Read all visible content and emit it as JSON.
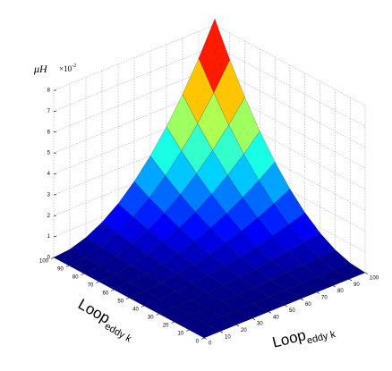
{
  "chart_data": {
    "type": "surface",
    "colormap": "jet",
    "grid": true,
    "zlabel": "μH",
    "z_multiplier_base": "×10",
    "z_multiplier_exponent": "-2",
    "xlabel": {
      "main": "Loop",
      "sub": "eddy k"
    },
    "ylabel": {
      "main": "Loop",
      "sub": "eddy k"
    },
    "xlim": [
      0,
      100
    ],
    "ylim": [
      0,
      100
    ],
    "zlim": [
      0,
      8
    ],
    "xticks": [
      0,
      10,
      20,
      30,
      40,
      50,
      60,
      70,
      80,
      90,
      100
    ],
    "yticks": [
      0,
      10,
      20,
      30,
      40,
      50,
      60,
      70,
      80,
      90,
      100
    ],
    "zticks": [
      0,
      1,
      2,
      3,
      4,
      5,
      6,
      7,
      8
    ],
    "x": [
      0,
      10,
      20,
      30,
      40,
      50,
      60,
      70,
      80,
      90,
      100
    ],
    "y": [
      0,
      10,
      20,
      30,
      40,
      50,
      60,
      70,
      80,
      90,
      100
    ],
    "z": [
      [
        0,
        0,
        0,
        0,
        0,
        0,
        0,
        0,
        0,
        0,
        0
      ],
      [
        0,
        0,
        0,
        0.01,
        0.01,
        0.02,
        0.03,
        0.04,
        0.05,
        0.07,
        0.08
      ],
      [
        0,
        0,
        0.01,
        0.03,
        0.05,
        0.08,
        0.12,
        0.16,
        0.21,
        0.27,
        0.33
      ],
      [
        0,
        0.01,
        0.03,
        0.07,
        0.12,
        0.19,
        0.27,
        0.37,
        0.48,
        0.61,
        0.75
      ],
      [
        0,
        0.01,
        0.05,
        0.12,
        0.21,
        0.33,
        0.48,
        0.65,
        0.85,
        1.08,
        1.33
      ],
      [
        0,
        0.02,
        0.08,
        0.19,
        0.33,
        0.52,
        0.75,
        1.02,
        1.33,
        1.68,
        2.08
      ],
      [
        0,
        0.03,
        0.12,
        0.27,
        0.48,
        0.75,
        1.08,
        1.46,
        1.91,
        2.42,
        2.99
      ],
      [
        0,
        0.04,
        0.16,
        0.37,
        0.65,
        1.02,
        1.46,
        1.99,
        2.6,
        3.29,
        4.07
      ],
      [
        0,
        0.05,
        0.21,
        0.48,
        0.85,
        1.33,
        1.91,
        2.6,
        3.4,
        4.3,
        5.31
      ],
      [
        0,
        0.07,
        0.27,
        0.61,
        1.08,
        1.68,
        2.42,
        3.29,
        4.3,
        5.45,
        6.72
      ],
      [
        0,
        0.08,
        0.33,
        0.75,
        1.33,
        2.08,
        2.99,
        4.07,
        5.31,
        6.72,
        8.3
      ]
    ]
  }
}
